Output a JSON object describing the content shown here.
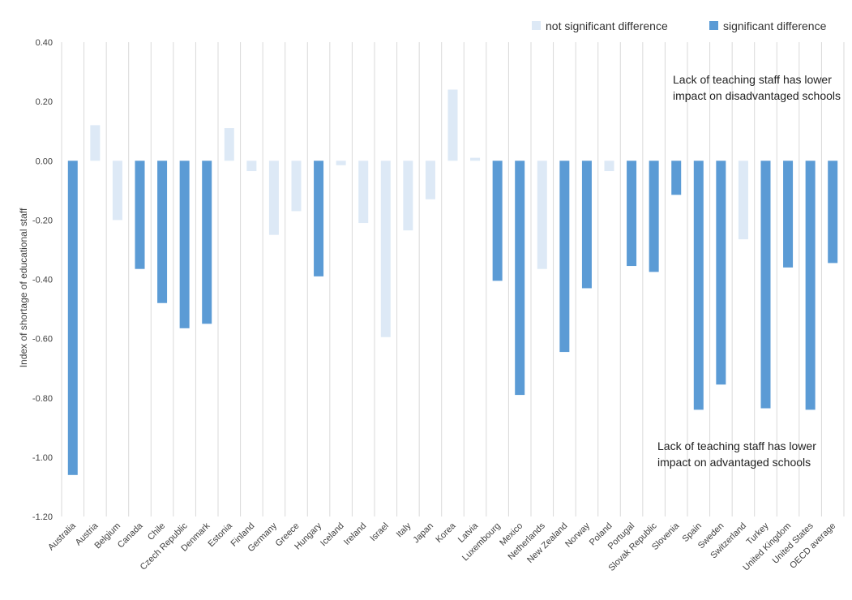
{
  "chart_data": {
    "type": "bar",
    "title": "",
    "xlabel": "",
    "ylabel": "Index of shortage of educational staff",
    "ylim": [
      -1.2,
      0.4
    ],
    "yticks": [
      0.4,
      0.2,
      0.0,
      -0.2,
      -0.4,
      -0.6,
      -0.8,
      -1.0,
      -1.2
    ],
    "ytick_labels": [
      "0.40",
      "0.20",
      "0.00",
      "-0.20",
      "-0.40",
      "-0.60",
      "-0.80",
      "-1.00",
      "-1.20"
    ],
    "grid": "vertical",
    "legend_position": "top-right",
    "legend": [
      {
        "name": "not significant difference",
        "color": "#dde9f6"
      },
      {
        "name": "significant difference",
        "color": "#5b9bd5"
      }
    ],
    "categories": [
      "Australia",
      "Austria",
      "Belgium",
      "Canada",
      "Chile",
      "Czech Republic",
      "Denmark",
      "Estonia",
      "Finland",
      "Germany",
      "Greece",
      "Hungary",
      "Iceland",
      "Ireland",
      "Israel",
      "Italy",
      "Japan",
      "Korea",
      "Latvia",
      "Luxembourg",
      "Mexico",
      "Netherlands",
      "New Zealand",
      "Norway",
      "Poland",
      "Portugal",
      "Slovak Republic",
      "Slovenia",
      "Spain",
      "Sweden",
      "Switzerland",
      "Turkey",
      "United Kingdom",
      "United States",
      "OECD average"
    ],
    "values": [
      -1.06,
      0.12,
      -0.2,
      -0.365,
      -0.48,
      -0.565,
      -0.55,
      0.11,
      -0.035,
      -0.25,
      -0.17,
      -0.39,
      -0.015,
      -0.21,
      -0.595,
      -0.235,
      -0.13,
      0.24,
      0.01,
      -0.405,
      -0.79,
      -0.365,
      -0.645,
      -0.43,
      -0.035,
      -0.355,
      -0.375,
      -0.115,
      -0.84,
      -0.755,
      -0.265,
      -0.835,
      -0.36,
      -0.84,
      -0.345
    ],
    "significant": [
      true,
      false,
      false,
      true,
      true,
      true,
      true,
      false,
      false,
      false,
      false,
      true,
      false,
      false,
      false,
      false,
      false,
      false,
      false,
      true,
      true,
      false,
      true,
      true,
      false,
      true,
      true,
      true,
      true,
      true,
      false,
      true,
      true,
      true,
      true
    ],
    "annotations": [
      {
        "lines": [
          "Lack of teaching staff has lower",
          "impact on disadvantaged schools"
        ]
      },
      {
        "lines": [
          "Lack of teaching staff has lower",
          "impact on advantaged schools"
        ]
      }
    ]
  }
}
